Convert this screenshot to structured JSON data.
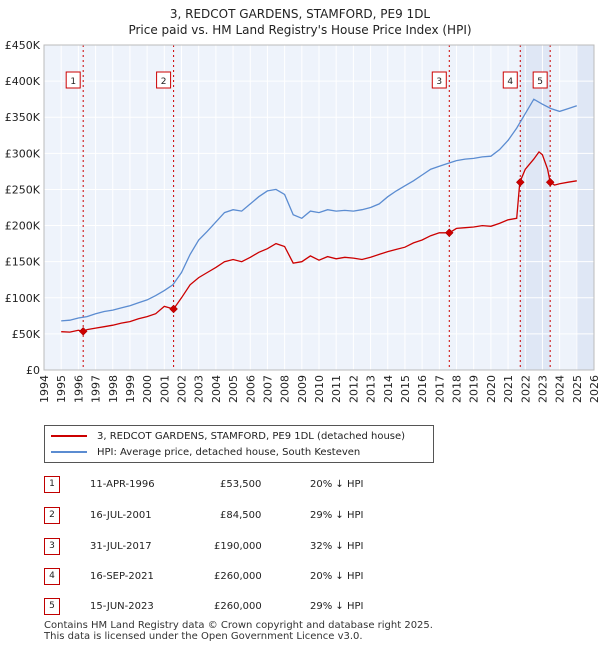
{
  "title_line1": "3, REDCOT GARDENS, STAMFORD, PE9 1DL",
  "title_line2": "Price paid vs. HM Land Registry's House Price Index (HPI)",
  "chart_data": {
    "type": "line",
    "title": "Price paid vs. HM Land Registry's House Price Index (HPI)",
    "xlim": [
      1994,
      2026
    ],
    "ylim": [
      0,
      450000
    ],
    "x_ticks": [
      1994,
      1995,
      1996,
      1997,
      1998,
      1999,
      2000,
      2001,
      2002,
      2003,
      2004,
      2005,
      2006,
      2007,
      2008,
      2009,
      2010,
      2011,
      2012,
      2013,
      2014,
      2015,
      2016,
      2017,
      2018,
      2019,
      2020,
      2021,
      2022,
      2023,
      2024,
      2025,
      2026
    ],
    "y_ticks": [
      {
        "value": 0,
        "label": "£0"
      },
      {
        "value": 50000,
        "label": "£50K"
      },
      {
        "value": 100000,
        "label": "£100K"
      },
      {
        "value": 150000,
        "label": "£150K"
      },
      {
        "value": 200000,
        "label": "£200K"
      },
      {
        "value": 250000,
        "label": "£250K"
      },
      {
        "value": 300000,
        "label": "£300K"
      },
      {
        "value": 350000,
        "label": "£350K"
      },
      {
        "value": 400000,
        "label": "£400K"
      },
      {
        "value": 450000,
        "label": "£450K"
      }
    ],
    "series": [
      {
        "name": "3, REDCOT GARDENS, STAMFORD, PE9 1DL (detached house)",
        "color": "#cc0000",
        "x": [
          1995.0,
          1995.5,
          1996.0,
          1996.28,
          1996.5,
          1997.0,
          1997.5,
          1998.0,
          1998.5,
          1999.0,
          1999.5,
          2000.0,
          2000.5,
          2001.0,
          2001.54,
          2002.0,
          2002.5,
          2003.0,
          2003.5,
          2004.0,
          2004.5,
          2005.0,
          2005.5,
          2006.0,
          2006.5,
          2007.0,
          2007.5,
          2008.0,
          2008.5,
          2009.0,
          2009.5,
          2010.0,
          2010.5,
          2011.0,
          2011.5,
          2012.0,
          2012.5,
          2013.0,
          2013.5,
          2014.0,
          2014.5,
          2015.0,
          2015.5,
          2016.0,
          2016.5,
          2017.0,
          2017.58,
          2018.0,
          2018.5,
          2019.0,
          2019.5,
          2020.0,
          2020.5,
          2021.0,
          2021.5,
          2021.68,
          2022.0,
          2022.5,
          2022.8,
          2023.0,
          2023.3,
          2023.45,
          2023.7,
          2024.0,
          2024.5,
          2025.0
        ],
        "values": [
          53000,
          52500,
          55000,
          53500,
          56000,
          58000,
          60000,
          62000,
          65000,
          67000,
          71000,
          74000,
          78000,
          88000,
          84500,
          100000,
          118000,
          128000,
          135000,
          142000,
          150000,
          153000,
          150000,
          156000,
          163000,
          168000,
          175000,
          171000,
          148000,
          150000,
          158000,
          152000,
          157000,
          154000,
          156000,
          155000,
          153000,
          156000,
          160000,
          164000,
          167000,
          170000,
          176000,
          180000,
          186000,
          190000,
          190000,
          196000,
          197000,
          198000,
          200000,
          199000,
          203000,
          208000,
          210000,
          260000,
          278000,
          292000,
          302000,
          298000,
          278000,
          260000,
          256000,
          258000,
          260000,
          262000
        ]
      },
      {
        "name": "HPI: Average price, detached house, South Kesteven",
        "color": "#5b8cd1",
        "x": [
          1995.0,
          1995.5,
          1996.0,
          1996.5,
          1997.0,
          1997.5,
          1998.0,
          1998.5,
          1999.0,
          1999.5,
          2000.0,
          2000.5,
          2001.0,
          2001.5,
          2002.0,
          2002.5,
          2003.0,
          2003.5,
          2004.0,
          2004.5,
          2005.0,
          2005.5,
          2006.0,
          2006.5,
          2007.0,
          2007.5,
          2008.0,
          2008.5,
          2009.0,
          2009.5,
          2010.0,
          2010.5,
          2011.0,
          2011.5,
          2012.0,
          2012.5,
          2013.0,
          2013.5,
          2014.0,
          2014.5,
          2015.0,
          2015.5,
          2016.0,
          2016.5,
          2017.0,
          2017.5,
          2018.0,
          2018.5,
          2019.0,
          2019.5,
          2020.0,
          2020.5,
          2021.0,
          2021.5,
          2022.0,
          2022.5,
          2023.0,
          2023.5,
          2024.0,
          2024.5,
          2025.0
        ],
        "values": [
          68000,
          69000,
          72000,
          74000,
          78000,
          81000,
          83000,
          86000,
          89000,
          93000,
          97000,
          103000,
          110000,
          118000,
          135000,
          160000,
          180000,
          192000,
          205000,
          218000,
          222000,
          220000,
          230000,
          240000,
          248000,
          250000,
          243000,
          215000,
          210000,
          220000,
          218000,
          222000,
          220000,
          221000,
          220000,
          222000,
          225000,
          230000,
          240000,
          248000,
          255000,
          262000,
          270000,
          278000,
          282000,
          286000,
          290000,
          292000,
          293000,
          295000,
          296000,
          305000,
          318000,
          335000,
          355000,
          375000,
          368000,
          362000,
          358000,
          362000,
          366000
        ]
      }
    ],
    "sales": [
      {
        "id": "1",
        "x": 1996.28,
        "value": 53500
      },
      {
        "id": "2",
        "x": 2001.54,
        "value": 84500
      },
      {
        "id": "3",
        "x": 2017.58,
        "value": 190000
      },
      {
        "id": "4",
        "x": 2021.71,
        "value": 260000
      },
      {
        "id": "5",
        "x": 2023.45,
        "value": 260000
      }
    ]
  },
  "legend": {
    "property_label": "3, REDCOT GARDENS, STAMFORD, PE9 1DL (detached house)",
    "hpi_label": "HPI: Average price, detached house, South Kesteven"
  },
  "sales_table": [
    {
      "id": "1",
      "date": "11-APR-1996",
      "price": "£53,500",
      "hpi": "20% ↓ HPI"
    },
    {
      "id": "2",
      "date": "16-JUL-2001",
      "price": "£84,500",
      "hpi": "29% ↓ HPI"
    },
    {
      "id": "3",
      "date": "31-JUL-2017",
      "price": "£190,000",
      "hpi": "32% ↓ HPI"
    },
    {
      "id": "4",
      "date": "16-SEP-2021",
      "price": "£260,000",
      "hpi": "20% ↓ HPI"
    },
    {
      "id": "5",
      "date": "15-JUN-2023",
      "price": "£260,000",
      "hpi": "29% ↓ HPI"
    }
  ],
  "footer": {
    "line1": "Contains HM Land Registry data © Crown copyright and database right 2025.",
    "line2": "This data is licensed under the Open Government Licence v3.0."
  }
}
